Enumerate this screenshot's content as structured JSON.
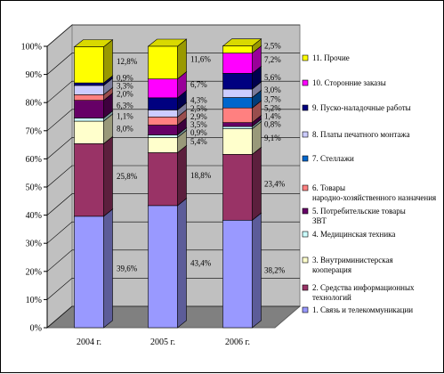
{
  "chart_data": {
    "type": "bar",
    "stacked": "percent",
    "three_d": true,
    "title": "",
    "xlabel": "",
    "ylabel": "",
    "ylim": [
      0,
      100
    ],
    "yticks": [
      "0%",
      "10%",
      "20%",
      "30%",
      "40%",
      "50%",
      "60%",
      "70%",
      "80%",
      "90%",
      "100%"
    ],
    "categories": [
      "2004 г.",
      "2005 г.",
      "2006 г."
    ],
    "legend_position": "right",
    "grid": true,
    "series": [
      {
        "name": "1. Связь и телекоммуникации",
        "color": "#9999ff",
        "values": [
          39.6,
          43.4,
          38.2
        ],
        "labels": [
          "39,6%",
          "43,4%",
          "38,2%"
        ]
      },
      {
        "name": "2. Средства информационных технологий",
        "color": "#993366",
        "values": [
          25.8,
          18.8,
          23.4
        ],
        "labels": [
          "25,8%",
          "18,8%",
          "23,4%"
        ]
      },
      {
        "name": "3. Внутриминистерская кооперация",
        "color": "#ffffcc",
        "values": [
          8.0,
          5.4,
          9.1
        ],
        "labels": [
          "8,0%",
          "5,4%",
          "9,1%"
        ]
      },
      {
        "name": "4. Медицинская техника",
        "color": "#ccffff",
        "values": [
          1.1,
          0.9,
          0.8
        ],
        "labels": [
          "1,1%",
          "0,9%",
          "0,8%"
        ]
      },
      {
        "name": "5. Потребительские товары ЗВТ",
        "color": "#660066",
        "values": [
          6.3,
          3.5,
          1.4
        ],
        "labels": [
          "6,3%",
          "3,5%",
          "1,4%"
        ]
      },
      {
        "name": "6. Товары народно-хозяйственного назначения",
        "color": "#ff8080",
        "values": [
          2.0,
          2.9,
          5.2
        ],
        "labels": [
          "2,0%",
          "2,9%",
          "5,2%"
        ]
      },
      {
        "name": "7. Стеллажи",
        "color": "#0066cc",
        "values": [
          0.0,
          0.0,
          3.7
        ],
        "labels": [
          "",
          "",
          "3,7%"
        ]
      },
      {
        "name": "8. Платы печатного монтажа",
        "color": "#ccccff",
        "values": [
          3.3,
          2.5,
          3.0
        ],
        "labels": [
          "3,3%",
          "2,5%",
          "3,0%"
        ]
      },
      {
        "name": "9. Пуско-наладочные работы",
        "color": "#000080",
        "values": [
          0.9,
          4.3,
          5.6
        ],
        "labels": [
          "0,9%",
          "4,3%",
          "5,6%"
        ]
      },
      {
        "name": "10. Сторонние заказы",
        "color": "#ff00ff",
        "values": [
          0.0,
          6.7,
          7.2
        ],
        "labels": [
          "",
          "6,7%",
          "7,2%"
        ]
      },
      {
        "name": "11. Прочие",
        "color": "#ffff00",
        "values": [
          12.8,
          11.6,
          2.5
        ],
        "labels": [
          "12,8%",
          "11,6%",
          "2,5%"
        ]
      }
    ]
  }
}
